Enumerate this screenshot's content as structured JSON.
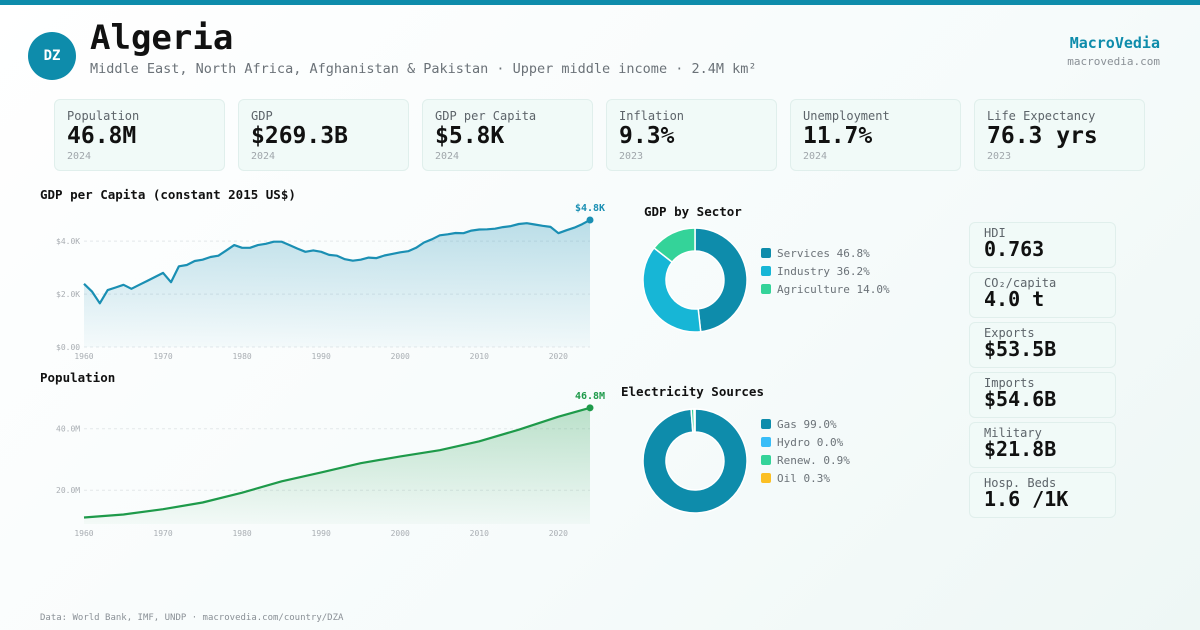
{
  "header": {
    "badge": "DZ",
    "title": "Algeria",
    "subtitle": "Middle East, North Africa, Afghanistan & Pakistan · Upper middle income · 2.4M km²",
    "brand": "MacroVedia",
    "brand_url": "macrovedia.com"
  },
  "kpis": [
    {
      "label": "Population",
      "value": "46.8M",
      "year": "2024"
    },
    {
      "label": "GDP",
      "value": "$269.3B",
      "year": "2024"
    },
    {
      "label": "GDP per Capita",
      "value": "$5.8K",
      "year": "2024"
    },
    {
      "label": "Inflation",
      "value": "9.3%",
      "year": "2023"
    },
    {
      "label": "Unemployment",
      "value": "11.7%",
      "year": "2024"
    },
    {
      "label": "Life Expectancy",
      "value": "76.3 yrs",
      "year": "2023"
    }
  ],
  "side_stats": [
    {
      "label": "HDI",
      "value": "0.763"
    },
    {
      "label": "CO₂/capita",
      "value": "4.0 t"
    },
    {
      "label": "Exports",
      "value": "$53.5B"
    },
    {
      "label": "Imports",
      "value": "$54.6B"
    },
    {
      "label": "Military",
      "value": "$21.8B"
    },
    {
      "label": "Hosp. Beds",
      "value": "1.6 /1K"
    }
  ],
  "colors": {
    "accent": "#0e8cab",
    "gdp_line": "#1a8fb3",
    "population_line": "#1e9a4a",
    "services": "#0e8cab",
    "industry": "#17b6d6",
    "agriculture": "#34d399",
    "gas": "#0e8cab",
    "hydro": "#38bdf8",
    "renewables": "#34d399",
    "oil": "#fbbf24"
  },
  "footer": "Data: World Bank, IMF, UNDP · macrovedia.com/country/DZA",
  "chart_data": [
    {
      "type": "area",
      "title": "GDP per Capita (constant 2015 US$)",
      "x_ticks": [
        "1960",
        "1970",
        "1980",
        "1990",
        "2000",
        "2010",
        "2020"
      ],
      "y_ticks": [
        "$0.00",
        "$2.0K",
        "$4.0K"
      ],
      "ylim": [
        0,
        4800
      ],
      "end_label": "$4.8K",
      "series": [
        {
          "x": [
            1960,
            1961,
            1962,
            1963,
            1964,
            1965,
            1966,
            1967,
            1968,
            1969,
            1970,
            1971,
            1972,
            1973,
            1974,
            1975,
            1976,
            1977,
            1978,
            1979,
            1980,
            1981,
            1982,
            1983,
            1984,
            1985,
            1986,
            1987,
            1988,
            1989,
            1990,
            1991,
            1992,
            1993,
            1994,
            1995,
            1996,
            1997,
            1998,
            1999,
            2000,
            2001,
            2002,
            2003,
            2004,
            2005,
            2006,
            2007,
            2008,
            2009,
            2010,
            2011,
            2012,
            2013,
            2014,
            2015,
            2016,
            2017,
            2018,
            2019,
            2020,
            2021,
            2022,
            2023,
            2024
          ],
          "values": [
            2390,
            2100,
            1650,
            2150,
            2250,
            2350,
            2200,
            2350,
            2500,
            2650,
            2800,
            2450,
            3050,
            3100,
            3250,
            3300,
            3400,
            3450,
            3650,
            3850,
            3750,
            3750,
            3850,
            3900,
            3980,
            3980,
            3850,
            3720,
            3600,
            3650,
            3600,
            3480,
            3450,
            3320,
            3260,
            3300,
            3380,
            3360,
            3460,
            3520,
            3580,
            3620,
            3750,
            3950,
            4070,
            4220,
            4260,
            4310,
            4300,
            4400,
            4440,
            4450,
            4470,
            4530,
            4570,
            4650,
            4680,
            4630,
            4580,
            4540,
            4300,
            4410,
            4510,
            4640,
            4800
          ]
        }
      ]
    },
    {
      "type": "area",
      "title": "Population",
      "x_ticks": [
        "1960",
        "1970",
        "1980",
        "1990",
        "2000",
        "2010",
        "2020"
      ],
      "y_ticks": [
        "20.0M",
        "40.0M"
      ],
      "ylim": [
        9,
        50
      ],
      "end_label": "46.8M",
      "series": [
        {
          "x": [
            1960,
            1965,
            1970,
            1975,
            1980,
            1985,
            1990,
            1995,
            2000,
            2005,
            2010,
            2015,
            2020,
            2024
          ],
          "values": [
            11.1,
            12.1,
            13.8,
            16.0,
            19.2,
            22.9,
            25.8,
            28.8,
            31.0,
            33.0,
            35.9,
            39.7,
            43.9,
            46.8
          ]
        }
      ]
    },
    {
      "type": "pie",
      "title": "GDP by Sector",
      "labels": [
        "Services",
        "Industry",
        "Agriculture"
      ],
      "values": [
        46.8,
        36.2,
        14.0
      ],
      "legend": [
        "Services 46.8%",
        "Industry 36.2%",
        "Agriculture 14.0%"
      ]
    },
    {
      "type": "pie",
      "title": "Electricity Sources",
      "labels": [
        "Gas",
        "Hydro",
        "Renew.",
        "Oil"
      ],
      "values": [
        99.0,
        0.0,
        0.9,
        0.3
      ],
      "legend": [
        "Gas 99.0%",
        "Hydro 0.0%",
        "Renew. 0.9%",
        "Oil 0.3%"
      ]
    }
  ]
}
